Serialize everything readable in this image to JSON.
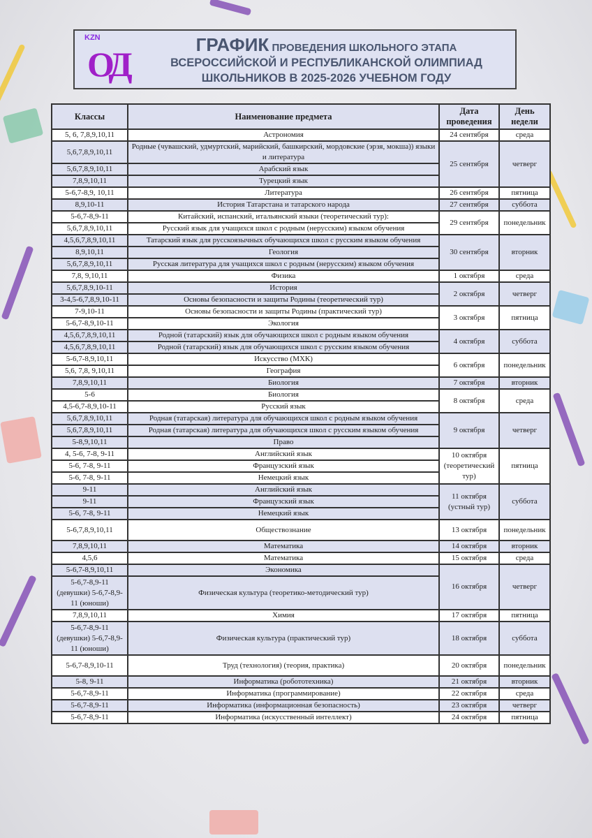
{
  "header": {
    "logo_text": "KZN ОД",
    "title_big": "ГРАФИК",
    "title_rest": "ПРОВЕДЕНИЯ ШКОЛЬНОГО ЭТАПА",
    "title_line2": "ВСЕРОССИЙСКОЙ И РЕСПУБЛИКАНСКОЙ ОЛИМПИАД",
    "title_line3": "ШКОЛЬНИКОВ В 2025-2026 УЧЕБНОМ ГОДУ"
  },
  "table": {
    "columns": [
      "Классы",
      "Наименование предмета",
      "Дата проведения",
      "День недели"
    ],
    "groups": [
      {
        "date": "24 сентября",
        "day": "среда",
        "rows": [
          {
            "classes": "5, 6, 7,8,9,10,11",
            "subject": "Астрономия"
          }
        ]
      },
      {
        "date": "25 сентября",
        "day": "четверг",
        "rows": [
          {
            "classes": "5,6,7,8,9,10,11",
            "subject": "Родные (чувашский, удмуртский, марийский, башкирский, мордовские (эрзя, мокша)) языки и литература",
            "tall": 1
          },
          {
            "classes": "5,6,7,8,9,10,11",
            "subject": "Арабский язык"
          },
          {
            "classes": "7,8,9,10,11",
            "subject": "Турецкий язык"
          }
        ]
      },
      {
        "date": "26 сентября",
        "day": "пятница",
        "rows": [
          {
            "classes": "5-6,7-8,9, 10,11",
            "subject": "Литература"
          }
        ]
      },
      {
        "date": "27 сентября",
        "day": "суббота",
        "rows": [
          {
            "classes": "8,9,10-11",
            "subject": "История Татарстана и татарского народа"
          }
        ]
      },
      {
        "date": "29 сентября",
        "day": "понедельник",
        "rows": [
          {
            "classes": "5-6,7-8,9-11",
            "subject": "Китайский, испанский, итальянский языки (теоретический тур):"
          },
          {
            "classes": "5,6,7,8,9,10,11",
            "subject": "Русский язык для учащихся школ с родным (нерусским) языком обучения"
          }
        ]
      },
      {
        "date": "30 сентября",
        "day": "вторник",
        "rows": [
          {
            "classes": "4,5,6,7,8,9,10,11",
            "subject": "Татарский язык для русскоязычных обучающихся школ с русским языком обучения"
          },
          {
            "classes": "8,9,10,11",
            "subject": "Геология"
          },
          {
            "classes": "5,6,7,8,9,10,11",
            "subject": "Русская литература для учащихся школ с родным (нерусским) языком обучения"
          }
        ]
      },
      {
        "date": "1 октября",
        "day": "среда",
        "rows": [
          {
            "classes": "7,8, 9,10,11",
            "subject": "Физика"
          }
        ]
      },
      {
        "date": "2 октября",
        "day": "четверг",
        "rows": [
          {
            "classes": "5,6,7,8,9,10-11",
            "subject": "История"
          },
          {
            "classes": "3-4,5-6,7,8,9,10-11",
            "subject": "Основы безопасности и защиты Родины (теоретический тур)"
          }
        ]
      },
      {
        "date": "3 октября",
        "day": "пятница",
        "rows": [
          {
            "classes": "7-9,10-11",
            "subject": "Основы безопасности и защиты Родины (практический тур)"
          },
          {
            "classes": "5-6,7-8,9,10-11",
            "subject": "Экология"
          }
        ]
      },
      {
        "date": "4 октября",
        "day": "суббота",
        "rows": [
          {
            "classes": "4,5,6,7,8,9,10,11",
            "subject": "Родной (татарский) язык для обучающихся школ с родным языком обучения"
          },
          {
            "classes": "4,5,6,7,8,9,10,11",
            "subject": "Родной (татарский) язык для обучающихся школ с русским языком обучения"
          }
        ]
      },
      {
        "date": "6 октября",
        "day": "понедельник",
        "rows": [
          {
            "classes": "5-6,7-8,9,10,11",
            "subject": "Искусство (МХК)"
          },
          {
            "classes": "5,6, 7,8, 9,10,11",
            "subject": "География"
          }
        ]
      },
      {
        "date": "7 октября",
        "day": "вторник",
        "rows": [
          {
            "classes": "7,8,9,10,11",
            "subject": "Биология"
          }
        ]
      },
      {
        "date": "8 октября",
        "day": "среда",
        "rows": [
          {
            "classes": "5-6",
            "subject": "Биология"
          },
          {
            "classes": "4,5-6,7-8,9,10-11",
            "subject": "Русский язык"
          }
        ]
      },
      {
        "date": "9 октября",
        "day": "четверг",
        "rows": [
          {
            "classes": "5,6,7,8,9,10,11",
            "subject": "Родная (татарская) литература для обучающихся школ с родным языком обучения"
          },
          {
            "classes": "5,6,7,8,9,10,11",
            "subject": "Родная (татарская) литература для обучающихся школ с русским языком обучения"
          },
          {
            "classes": "5-8,9,10,11",
            "subject": "Право"
          }
        ]
      },
      {
        "date": "10 октября (теоретический тур)",
        "day": "пятница",
        "rows": [
          {
            "classes": "4, 5-6, 7-8, 9-11",
            "subject": "Английский язык"
          },
          {
            "classes": "5-6, 7-8, 9-11",
            "subject": "Французский язык"
          },
          {
            "classes": "5-6, 7-8, 9-11",
            "subject": "Немецкий язык"
          }
        ]
      },
      {
        "date": "11 октября (устный тур)",
        "day": "суббота",
        "rows": [
          {
            "classes": "9-11",
            "subject": "Английский язык"
          },
          {
            "classes": "9-11",
            "subject": "Французский язык"
          },
          {
            "classes": "5-6, 7-8, 9-11",
            "subject": "Немецкий язык"
          }
        ]
      },
      {
        "date": "13 октября",
        "day": "понедельник",
        "rows": [
          {
            "classes": "5-6,7,8,9,10,11",
            "subject": "Обществознание",
            "tall": 1
          }
        ]
      },
      {
        "date": "14 октября",
        "day": "вторник",
        "rows": [
          {
            "classes": "7,8,9,10,11",
            "subject": "Математика"
          }
        ]
      },
      {
        "date": "15 октября",
        "day": "среда",
        "rows": [
          {
            "classes": "4,5,6",
            "subject": "Математика"
          }
        ]
      },
      {
        "date": "16 октября",
        "day": "четверг",
        "rows": [
          {
            "classes": "5-6,7-8,9,10,11",
            "subject": "Экономика"
          },
          {
            "classes": "5-6,7-8,9-11 (девушки) 5-6,7-8,9-11 (юноши)",
            "subject": "Физическая культура (теоретико-методический тур)",
            "xtall": 1
          }
        ]
      },
      {
        "date": "17 октября",
        "day": "пятница",
        "rows": [
          {
            "classes": "7,8,9,10,11",
            "subject": "Химия"
          }
        ]
      },
      {
        "date": "18 октября",
        "day": "суббота",
        "rows": [
          {
            "classes": "5-6,7-8,9-11 (девушки) 5-6,7-8,9-11 (юноши)",
            "subject": "Физическая культура (практический тур)",
            "xtall": 1
          }
        ]
      },
      {
        "date": "20 октября",
        "day": "понедельник",
        "rows": [
          {
            "classes": "5-6,7-8,9,10-11",
            "subject": "Труд (технология) (теория, практика)",
            "tall": 1
          }
        ]
      },
      {
        "date": "21 октября",
        "day": "вторник",
        "rows": [
          {
            "classes": "5-8, 9-11",
            "subject": "Информатика (робототехника)"
          }
        ]
      },
      {
        "date": "22 октября",
        "day": "среда",
        "rows": [
          {
            "classes": "5-6,7-8,9-11",
            "subject": "Информатика (программирование)"
          }
        ]
      },
      {
        "date": "23 октября",
        "day": "четверг",
        "rows": [
          {
            "classes": "5-6,7-8,9-11",
            "subject": "Информатика (информационная безопасность)"
          }
        ]
      },
      {
        "date": "24 октября",
        "day": "пятница",
        "rows": [
          {
            "classes": "5-6,7-8,9-11",
            "subject": "Информатика (искусственный интеллект)"
          }
        ]
      }
    ]
  },
  "colors": {
    "shade": "#dde0f0",
    "title": "#4a5670",
    "logo": "#a020c8"
  }
}
